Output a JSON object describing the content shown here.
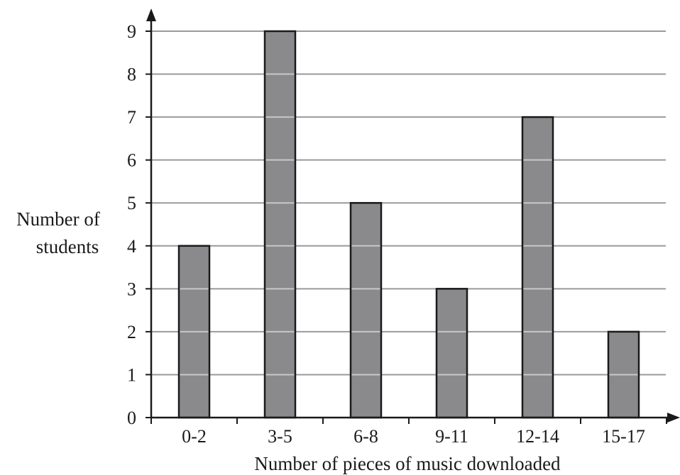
{
  "chart_data": {
    "type": "bar",
    "title": "",
    "xlabel": "Number of pieces of music downloaded",
    "ylabel_lines": [
      "Number of",
      "students"
    ],
    "categories": [
      "0-2",
      "3-5",
      "6-8",
      "9-11",
      "12-14",
      "15-17"
    ],
    "values": [
      4,
      9,
      5,
      3,
      7,
      2
    ],
    "ylim": [
      0,
      9
    ],
    "yticks": [
      "0",
      "1",
      "2",
      "3",
      "4",
      "5",
      "6",
      "7",
      "8",
      "9"
    ],
    "grid": true,
    "legend": "none",
    "colors": {
      "bar_fill": "#8a8a8c",
      "bar_stroke": "#1a1a1a",
      "grid": "#9a9a9a",
      "bar_grid": "#c8c8c8",
      "axis": "#1a1a1a"
    }
  }
}
